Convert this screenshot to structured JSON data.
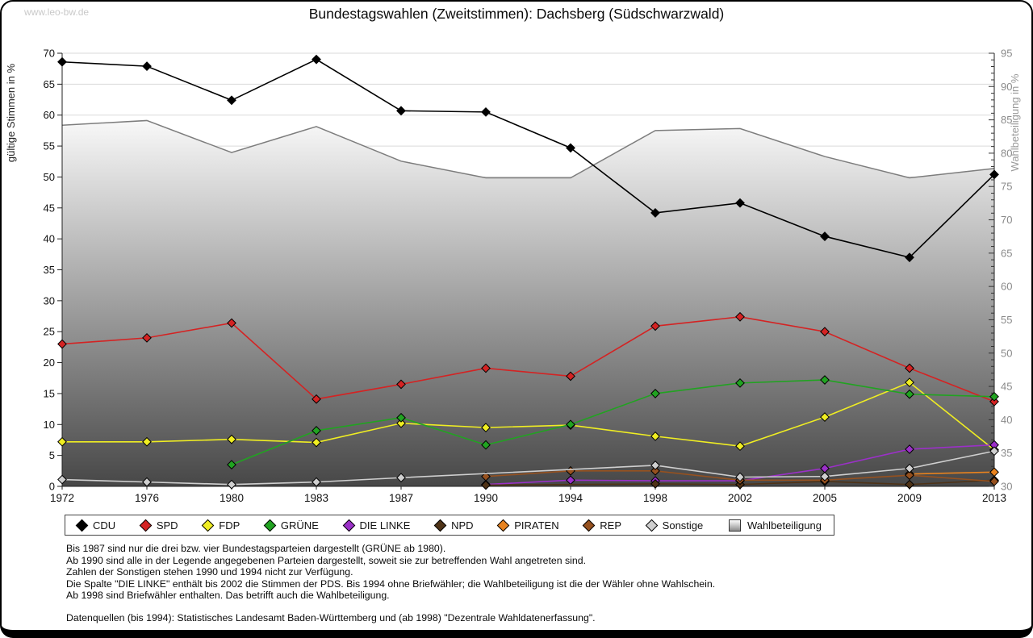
{
  "page": {
    "watermark": "www.leo-bw.de",
    "title": "Bundestagswahlen (Zweitstimmen): Dachsberg (Südschwarzwald)"
  },
  "chart_data": {
    "type": "line",
    "title": "Bundestagswahlen (Zweitstimmen): Dachsberg (Südschwarzwald)",
    "categories": [
      "1972",
      "1976",
      "1980",
      "1983",
      "1987",
      "1990",
      "1994",
      "1998",
      "2002",
      "2005",
      "2009",
      "2013"
    ],
    "grid": true,
    "legend_position": "bottom",
    "y_left": {
      "label": "gültige Stimmen in %",
      "min": 0,
      "max": 70,
      "step": 5
    },
    "y_right": {
      "label": "Wahlbeteiligung in %",
      "min": 30,
      "max": 95,
      "step": 5,
      "minor_step": 1
    },
    "series": [
      {
        "name": "CDU",
        "color": "#000000",
        "axis": "left",
        "style": "line-markers",
        "values": [
          68.6,
          67.9,
          62.4,
          69.0,
          60.7,
          60.5,
          54.7,
          44.2,
          45.8,
          40.4,
          37.0,
          50.4
        ]
      },
      {
        "name": "SPD",
        "color": "#d42323",
        "axis": "left",
        "style": "line-markers",
        "values": [
          23.0,
          24.0,
          26.4,
          14.1,
          16.5,
          19.1,
          17.8,
          25.9,
          27.4,
          25.0,
          19.1,
          13.7
        ]
      },
      {
        "name": "FDP",
        "color": "#f0ee22",
        "axis": "left",
        "style": "line-markers",
        "values": [
          7.2,
          7.2,
          7.6,
          7.1,
          10.2,
          9.5,
          9.9,
          8.1,
          6.5,
          11.2,
          16.8,
          5.9
        ]
      },
      {
        "name": "GRÜNE",
        "color": "#21a321",
        "axis": "left",
        "style": "line-markers",
        "values": [
          null,
          null,
          3.5,
          9.0,
          11.1,
          6.7,
          10.0,
          15.0,
          16.7,
          17.2,
          14.9,
          14.5
        ]
      },
      {
        "name": "DIE LINKE",
        "color": "#9b30c8",
        "axis": "left",
        "style": "line-markers",
        "values": [
          null,
          null,
          null,
          null,
          null,
          0.3,
          1.0,
          0.9,
          0.9,
          2.9,
          6.0,
          6.7
        ]
      },
      {
        "name": "NPD",
        "color": "#4f3317",
        "axis": "left",
        "style": "line-markers",
        "values": [
          null,
          null,
          null,
          null,
          null,
          0.2,
          null,
          0.4,
          0.3,
          0.8,
          0.3,
          1.0
        ]
      },
      {
        "name": "PIRATEN",
        "color": "#e8821e",
        "axis": "left",
        "style": "line-markers",
        "values": [
          null,
          null,
          null,
          null,
          null,
          null,
          null,
          null,
          null,
          null,
          2.0,
          2.3
        ]
      },
      {
        "name": "REP",
        "color": "#96511f",
        "axis": "left",
        "style": "line-markers",
        "values": [
          null,
          null,
          null,
          null,
          null,
          1.6,
          2.5,
          2.5,
          1.0,
          1.0,
          1.8,
          0.8
        ]
      },
      {
        "name": "Sonstige",
        "color": "#cfcfcf",
        "axis": "left",
        "style": "line-markers",
        "values": [
          1.1,
          0.7,
          0.3,
          0.7,
          1.4,
          null,
          null,
          3.4,
          1.5,
          1.6,
          2.9,
          5.7
        ]
      },
      {
        "name": "Wahlbeteiligung",
        "color": "#7d7d7d",
        "axis": "right",
        "style": "area",
        "values": [
          84.2,
          84.9,
          80.1,
          84.0,
          78.8,
          76.3,
          76.3,
          83.4,
          83.7,
          79.5,
          76.3,
          77.7
        ]
      }
    ]
  },
  "footnotes": {
    "lines": [
      "Bis 1987 sind nur die drei bzw. vier Bundestagsparteien dargestellt (GRÜNE ab 1980).",
      "Ab 1990 sind alle in der Legende angegebenen Parteien dargestellt, soweit sie zur betreffenden Wahl angetreten sind.",
      "Zahlen der Sonstigen stehen 1990 und 1994 nicht zur Verfügung.",
      "Die Spalte \"DIE LINKE\" enthält bis 2002 die Stimmen der PDS. Bis 1994 ohne Briefwähler; die Wahlbeteiligung ist die der Wähler ohne Wahlschein.",
      "Ab 1998 sind Briefwähler enthalten. Das betrifft auch die Wahlbeteiligung."
    ],
    "source": "Datenquellen (bis 1994): Statistisches Landesamt Baden-Württemberg und (ab 1998) \"Dezentrale Wahldatenerfassung\"."
  }
}
